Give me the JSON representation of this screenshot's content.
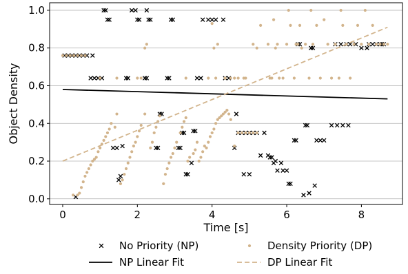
{
  "colors": {
    "np": "#000000",
    "dp": "#d2b48c",
    "grid": "#b0b0b0",
    "axis": "#000000"
  },
  "chart_data": {
    "type": "scatter",
    "xlabel": "Time [s]",
    "ylabel": "Object Density",
    "xlim": [
      -0.35,
      9.1
    ],
    "ylim": [
      -0.03,
      1.04
    ],
    "xticks": [
      0,
      2,
      4,
      6,
      8
    ],
    "yticks": [
      0.0,
      0.2,
      0.4,
      0.6,
      0.8,
      1.0
    ],
    "xtick_labels": [
      "0",
      "2",
      "4",
      "6",
      "8"
    ],
    "ytick_labels": [
      "0.0",
      "0.2",
      "0.4",
      "0.6",
      "0.8",
      "1.0"
    ],
    "grid": "horizontal",
    "legend_placement": "below",
    "series": [
      {
        "name": "No Priority (NP)",
        "kind": "scatter",
        "marker": "x",
        "color": "#000000",
        "points": [
          [
            0.05,
            0.76
          ],
          [
            0.15,
            0.76
          ],
          [
            0.25,
            0.76
          ],
          [
            0.35,
            0.76
          ],
          [
            0.45,
            0.76
          ],
          [
            0.55,
            0.76
          ],
          [
            0.65,
            0.76
          ],
          [
            0.8,
            0.76
          ],
          [
            0.35,
            0.01
          ],
          [
            0.75,
            0.64
          ],
          [
            0.85,
            0.64
          ],
          [
            0.95,
            0.64
          ],
          [
            1.05,
            0.64
          ],
          [
            1.1,
            1.0
          ],
          [
            1.15,
            1.0
          ],
          [
            1.2,
            0.95
          ],
          [
            1.25,
            0.95
          ],
          [
            1.35,
            0.27
          ],
          [
            1.45,
            0.27
          ],
          [
            1.5,
            0.1
          ],
          [
            1.55,
            0.12
          ],
          [
            1.6,
            0.28
          ],
          [
            1.7,
            0.64
          ],
          [
            1.75,
            0.64
          ],
          [
            1.85,
            1.0
          ],
          [
            1.95,
            1.0
          ],
          [
            2.0,
            0.95
          ],
          [
            2.05,
            0.95
          ],
          [
            2.2,
            0.64
          ],
          [
            2.25,
            0.64
          ],
          [
            2.25,
            1.0
          ],
          [
            2.3,
            0.95
          ],
          [
            2.35,
            0.95
          ],
          [
            2.5,
            0.27
          ],
          [
            2.55,
            0.27
          ],
          [
            2.6,
            0.45
          ],
          [
            2.65,
            0.45
          ],
          [
            2.8,
            0.64
          ],
          [
            2.85,
            0.64
          ],
          [
            2.9,
            0.95
          ],
          [
            2.95,
            0.95
          ],
          [
            3.1,
            0.27
          ],
          [
            3.15,
            0.27
          ],
          [
            3.2,
            0.35
          ],
          [
            3.25,
            0.35
          ],
          [
            3.3,
            0.13
          ],
          [
            3.35,
            0.13
          ],
          [
            3.45,
            0.19
          ],
          [
            3.5,
            0.36
          ],
          [
            3.55,
            0.36
          ],
          [
            3.6,
            0.64
          ],
          [
            3.7,
            0.64
          ],
          [
            3.75,
            0.95
          ],
          [
            3.9,
            0.95
          ],
          [
            4.0,
            0.95
          ],
          [
            4.1,
            0.95
          ],
          [
            4.3,
            0.95
          ],
          [
            4.35,
            0.64
          ],
          [
            4.45,
            0.64
          ],
          [
            4.6,
            0.27
          ],
          [
            4.65,
            0.45
          ],
          [
            4.7,
            0.35
          ],
          [
            4.8,
            0.35
          ],
          [
            4.9,
            0.35
          ],
          [
            4.85,
            0.13
          ],
          [
            5.0,
            0.13
          ],
          [
            5.0,
            0.35
          ],
          [
            5.1,
            0.35
          ],
          [
            5.2,
            0.35
          ],
          [
            5.3,
            0.23
          ],
          [
            5.4,
            0.35
          ],
          [
            5.5,
            0.23
          ],
          [
            5.55,
            0.22
          ],
          [
            5.6,
            0.22
          ],
          [
            5.65,
            0.19
          ],
          [
            5.7,
            0.2
          ],
          [
            5.75,
            0.15
          ],
          [
            5.85,
            0.19
          ],
          [
            5.9,
            0.15
          ],
          [
            6.0,
            0.15
          ],
          [
            6.05,
            0.08
          ],
          [
            6.1,
            0.08
          ],
          [
            6.2,
            0.31
          ],
          [
            6.25,
            0.31
          ],
          [
            6.3,
            0.82
          ],
          [
            6.35,
            0.82
          ],
          [
            6.45,
            0.02
          ],
          [
            6.5,
            0.39
          ],
          [
            6.55,
            0.39
          ],
          [
            6.6,
            0.03
          ],
          [
            6.65,
            0.8
          ],
          [
            6.7,
            0.8
          ],
          [
            6.75,
            0.07
          ],
          [
            6.8,
            0.31
          ],
          [
            6.9,
            0.31
          ],
          [
            7.0,
            0.31
          ],
          [
            7.2,
            0.39
          ],
          [
            7.35,
            0.39
          ],
          [
            7.5,
            0.39
          ],
          [
            7.65,
            0.39
          ],
          [
            7.3,
            0.82
          ],
          [
            7.45,
            0.82
          ],
          [
            7.6,
            0.82
          ],
          [
            7.7,
            0.82
          ],
          [
            7.85,
            0.82
          ],
          [
            8.0,
            0.8
          ],
          [
            8.15,
            0.8
          ],
          [
            8.2,
            0.82
          ],
          [
            8.3,
            0.82
          ],
          [
            8.4,
            0.82
          ],
          [
            8.5,
            0.82
          ],
          [
            8.55,
            0.82
          ],
          [
            8.6,
            0.82
          ]
        ]
      },
      {
        "name": "Density Priority (DP)",
        "kind": "scatter",
        "marker": "o",
        "color": "#d2b48c",
        "points": [
          [
            0.0,
            0.76
          ],
          [
            0.1,
            0.76
          ],
          [
            0.2,
            0.76
          ],
          [
            0.3,
            0.76
          ],
          [
            0.4,
            0.76
          ],
          [
            0.5,
            0.76
          ],
          [
            0.6,
            0.76
          ],
          [
            0.28,
            0.02
          ],
          [
            0.4,
            0.02
          ],
          [
            0.45,
            0.03
          ],
          [
            0.5,
            0.06
          ],
          [
            0.55,
            0.09
          ],
          [
            0.6,
            0.12
          ],
          [
            0.65,
            0.14
          ],
          [
            0.7,
            0.16
          ],
          [
            0.75,
            0.18
          ],
          [
            0.8,
            0.2
          ],
          [
            0.85,
            0.21
          ],
          [
            0.9,
            0.22
          ],
          [
            0.95,
            0.25
          ],
          [
            1.0,
            0.27
          ],
          [
            1.05,
            0.29
          ],
          [
            1.1,
            0.31
          ],
          [
            1.15,
            0.33
          ],
          [
            1.2,
            0.35
          ],
          [
            1.25,
            0.37
          ],
          [
            1.3,
            0.4
          ],
          [
            1.4,
            0.38
          ],
          [
            1.45,
            0.45
          ],
          [
            1.0,
            0.64
          ],
          [
            1.45,
            0.64
          ],
          [
            1.55,
            0.08
          ],
          [
            1.6,
            0.1
          ],
          [
            1.65,
            0.13
          ],
          [
            1.7,
            0.16
          ],
          [
            1.75,
            0.19
          ],
          [
            1.8,
            0.22
          ],
          [
            1.85,
            0.25
          ],
          [
            1.9,
            0.28
          ],
          [
            1.95,
            0.3
          ],
          [
            2.0,
            0.33
          ],
          [
            2.05,
            0.36
          ],
          [
            2.1,
            0.39
          ],
          [
            2.2,
            0.45
          ],
          [
            2.0,
            0.64
          ],
          [
            2.1,
            0.64
          ],
          [
            2.2,
            0.8
          ],
          [
            2.25,
            0.82
          ],
          [
            2.35,
            0.27
          ],
          [
            2.4,
            0.3
          ],
          [
            2.45,
            0.35
          ],
          [
            2.5,
            0.38
          ],
          [
            2.55,
            0.41
          ],
          [
            2.6,
            0.44
          ],
          [
            2.7,
            0.08
          ],
          [
            2.75,
            0.13
          ],
          [
            2.8,
            0.16
          ],
          [
            2.85,
            0.19
          ],
          [
            2.9,
            0.22
          ],
          [
            2.95,
            0.24
          ],
          [
            3.0,
            0.27
          ],
          [
            3.05,
            0.3
          ],
          [
            3.15,
            0.35
          ],
          [
            3.2,
            0.38
          ],
          [
            3.25,
            0.41
          ],
          [
            3.3,
            0.43
          ],
          [
            3.3,
            0.64
          ],
          [
            3.35,
            0.2
          ],
          [
            3.4,
            0.22
          ],
          [
            3.5,
            0.24
          ],
          [
            3.55,
            0.26
          ],
          [
            3.6,
            0.3
          ],
          [
            3.65,
            0.2
          ],
          [
            3.7,
            0.22
          ],
          [
            3.75,
            0.25
          ],
          [
            3.8,
            0.28
          ],
          [
            3.85,
            0.27
          ],
          [
            3.9,
            0.3
          ],
          [
            3.95,
            0.33
          ],
          [
            4.0,
            0.35
          ],
          [
            4.05,
            0.37
          ],
          [
            4.1,
            0.4
          ],
          [
            4.15,
            0.42
          ],
          [
            4.2,
            0.43
          ],
          [
            4.25,
            0.44
          ],
          [
            4.3,
            0.45
          ],
          [
            4.35,
            0.46
          ],
          [
            4.4,
            0.47
          ],
          [
            4.45,
            0.45
          ],
          [
            4.5,
            0.42
          ],
          [
            4.6,
            0.28
          ],
          [
            4.7,
            0.35
          ],
          [
            4.8,
            0.35
          ],
          [
            4.9,
            0.35
          ],
          [
            5.0,
            0.35
          ],
          [
            5.1,
            0.35
          ],
          [
            5.2,
            0.35
          ],
          [
            3.9,
            0.64
          ],
          [
            4.1,
            0.64
          ],
          [
            4.0,
            0.93
          ],
          [
            4.05,
            0.8
          ],
          [
            4.15,
            0.82
          ],
          [
            4.35,
            0.64
          ],
          [
            4.5,
            0.64
          ],
          [
            4.6,
            0.64
          ],
          [
            4.7,
            0.64
          ],
          [
            4.85,
            0.64
          ],
          [
            4.9,
            0.64
          ],
          [
            5.1,
            0.82
          ],
          [
            5.2,
            0.8
          ],
          [
            5.3,
            0.92
          ],
          [
            5.5,
            0.82
          ],
          [
            5.55,
            0.64
          ],
          [
            5.6,
            0.64
          ],
          [
            5.65,
            0.95
          ],
          [
            5.7,
            0.8
          ],
          [
            5.75,
            0.82
          ],
          [
            5.8,
            0.64
          ],
          [
            5.9,
            0.64
          ],
          [
            6.0,
            0.82
          ],
          [
            6.05,
            1.0
          ],
          [
            6.1,
            0.92
          ],
          [
            6.2,
            0.64
          ],
          [
            6.25,
            0.82
          ],
          [
            6.3,
            0.82
          ],
          [
            6.35,
            0.92
          ],
          [
            6.4,
            0.8
          ],
          [
            6.5,
            0.82
          ],
          [
            6.6,
            0.64
          ],
          [
            6.65,
            1.0
          ],
          [
            6.7,
            0.82
          ],
          [
            6.8,
            0.92
          ],
          [
            6.9,
            0.64
          ],
          [
            7.0,
            0.95
          ],
          [
            7.1,
            0.82
          ],
          [
            7.2,
            0.64
          ],
          [
            7.3,
            0.82
          ],
          [
            7.4,
            0.64
          ],
          [
            7.45,
            1.0
          ],
          [
            7.5,
            0.92
          ],
          [
            7.6,
            0.82
          ],
          [
            7.7,
            0.64
          ],
          [
            7.8,
            0.82
          ],
          [
            7.9,
            0.92
          ],
          [
            8.0,
            0.82
          ],
          [
            8.1,
            1.0
          ],
          [
            8.2,
            0.82
          ],
          [
            8.3,
            0.92
          ],
          [
            8.4,
            0.82
          ],
          [
            8.5,
            0.82
          ],
          [
            8.6,
            0.82
          ],
          [
            8.7,
            0.82
          ]
        ]
      },
      {
        "name": "NP Linear Fit",
        "kind": "line",
        "style": "solid",
        "color": "#000000",
        "points": [
          [
            0.0,
            0.58
          ],
          [
            8.7,
            0.53
          ]
        ]
      },
      {
        "name": "DP Linear Fit",
        "kind": "line",
        "style": "dashed",
        "color": "#d2b48c",
        "points": [
          [
            0.0,
            0.2
          ],
          [
            8.7,
            0.91
          ]
        ]
      }
    ]
  }
}
